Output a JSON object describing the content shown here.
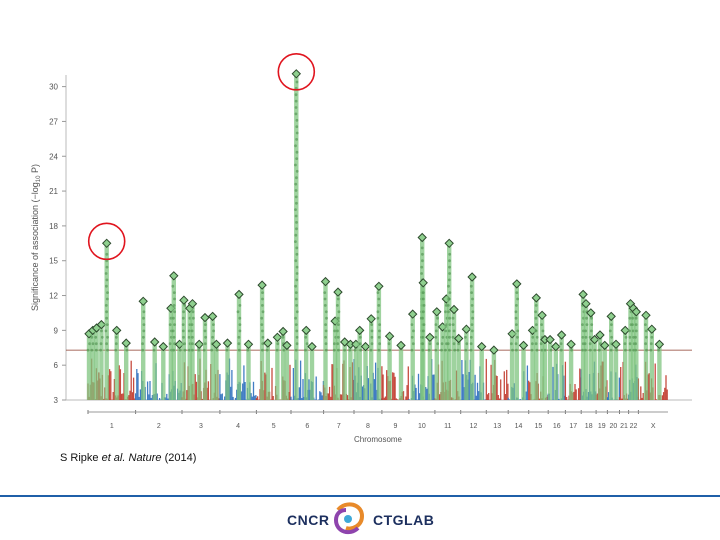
{
  "chart_data": {
    "type": "scatter",
    "title": "",
    "xlabel": "Chromosome",
    "ylabel": "Significance of association (−log10 P)",
    "ylabel_main": "Significance of association (−log",
    "ylabel_sub": "10",
    "ylabel_end": " P)",
    "ylim": [
      3,
      31
    ],
    "yticks": [
      3,
      6,
      9,
      12,
      15,
      18,
      21,
      24,
      27,
      30
    ],
    "threshold": 7.3,
    "chromosomes": [
      "1",
      "2",
      "3",
      "4",
      "5",
      "6",
      "7",
      "8",
      "9",
      "10",
      "11",
      "12",
      "13",
      "14",
      "15",
      "16",
      "17",
      "18",
      "19",
      "20",
      "21",
      "22",
      "X"
    ],
    "chrom_sizes": [
      249,
      243,
      198,
      191,
      181,
      171,
      159,
      146,
      141,
      136,
      135,
      134,
      115,
      107,
      102,
      90,
      83,
      78,
      59,
      63,
      48,
      51,
      155
    ],
    "bar_colors": [
      "#c0392b",
      "#2e6fbe"
    ],
    "hit_color": "#7fc47f",
    "loci": [
      {
        "chr": "1",
        "pos": 5,
        "p": 8.7
      },
      {
        "chr": "1",
        "pos": 25,
        "p": 9.0
      },
      {
        "chr": "1",
        "pos": 45,
        "p": 9.2
      },
      {
        "chr": "1",
        "pos": 70,
        "p": 9.5
      },
      {
        "chr": "1",
        "pos": 98,
        "p": 16.5
      },
      {
        "chr": "1",
        "pos": 150,
        "p": 9.0
      },
      {
        "chr": "1",
        "pos": 200,
        "p": 7.9
      },
      {
        "chr": "2",
        "pos": 40,
        "p": 11.5
      },
      {
        "chr": "2",
        "pos": 100,
        "p": 8.0
      },
      {
        "chr": "2",
        "pos": 145,
        "p": 7.6
      },
      {
        "chr": "2",
        "pos": 185,
        "p": 10.9
      },
      {
        "chr": "2",
        "pos": 200,
        "p": 13.7
      },
      {
        "chr": "2",
        "pos": 230,
        "p": 7.8
      },
      {
        "chr": "3",
        "pos": 10,
        "p": 11.6
      },
      {
        "chr": "3",
        "pos": 40,
        "p": 10.9
      },
      {
        "chr": "3",
        "pos": 55,
        "p": 11.3
      },
      {
        "chr": "3",
        "pos": 90,
        "p": 7.8
      },
      {
        "chr": "3",
        "pos": 120,
        "p": 10.1
      },
      {
        "chr": "3",
        "pos": 160,
        "p": 10.2
      },
      {
        "chr": "3",
        "pos": 180,
        "p": 7.8
      },
      {
        "chr": "4",
        "pos": 40,
        "p": 7.9
      },
      {
        "chr": "4",
        "pos": 100,
        "p": 12.1
      },
      {
        "chr": "4",
        "pos": 150,
        "p": 7.8
      },
      {
        "chr": "5",
        "pos": 30,
        "p": 12.9
      },
      {
        "chr": "5",
        "pos": 60,
        "p": 7.9
      },
      {
        "chr": "5",
        "pos": 110,
        "p": 8.4
      },
      {
        "chr": "5",
        "pos": 140,
        "p": 8.9
      },
      {
        "chr": "5",
        "pos": 160,
        "p": 7.7
      },
      {
        "chr": "6",
        "pos": 28,
        "p": 31.1
      },
      {
        "chr": "6",
        "pos": 80,
        "p": 9.0
      },
      {
        "chr": "6",
        "pos": 110,
        "p": 7.6
      },
      {
        "chr": "7",
        "pos": 10,
        "p": 13.2
      },
      {
        "chr": "7",
        "pos": 60,
        "p": 9.8
      },
      {
        "chr": "7",
        "pos": 75,
        "p": 12.3
      },
      {
        "chr": "7",
        "pos": 110,
        "p": 8.0
      },
      {
        "chr": "7",
        "pos": 140,
        "p": 7.8
      },
      {
        "chr": "8",
        "pos": 10,
        "p": 7.8
      },
      {
        "chr": "8",
        "pos": 30,
        "p": 9.0
      },
      {
        "chr": "8",
        "pos": 60,
        "p": 7.6
      },
      {
        "chr": "8",
        "pos": 90,
        "p": 10.0
      },
      {
        "chr": "8",
        "pos": 130,
        "p": 12.8
      },
      {
        "chr": "9",
        "pos": 40,
        "p": 8.5
      },
      {
        "chr": "9",
        "pos": 100,
        "p": 7.7
      },
      {
        "chr": "10",
        "pos": 20,
        "p": 10.4
      },
      {
        "chr": "10",
        "pos": 70,
        "p": 17.0
      },
      {
        "chr": "10",
        "pos": 75,
        "p": 13.1
      },
      {
        "chr": "10",
        "pos": 110,
        "p": 8.4
      },
      {
        "chr": "11",
        "pos": 10,
        "p": 10.6
      },
      {
        "chr": "11",
        "pos": 40,
        "p": 9.3
      },
      {
        "chr": "11",
        "pos": 60,
        "p": 11.7
      },
      {
        "chr": "11",
        "pos": 75,
        "p": 16.5
      },
      {
        "chr": "11",
        "pos": 100,
        "p": 10.8
      },
      {
        "chr": "11",
        "pos": 125,
        "p": 8.3
      },
      {
        "chr": "12",
        "pos": 30,
        "p": 9.1
      },
      {
        "chr": "12",
        "pos": 60,
        "p": 13.6
      },
      {
        "chr": "12",
        "pos": 110,
        "p": 7.6
      },
      {
        "chr": "13",
        "pos": 40,
        "p": 7.3
      },
      {
        "chr": "14",
        "pos": 20,
        "p": 8.7
      },
      {
        "chr": "14",
        "pos": 45,
        "p": 13.0
      },
      {
        "chr": "14",
        "pos": 80,
        "p": 7.7
      },
      {
        "chr": "15",
        "pos": 20,
        "p": 9.0
      },
      {
        "chr": "15",
        "pos": 40,
        "p": 11.8
      },
      {
        "chr": "15",
        "pos": 70,
        "p": 10.3
      },
      {
        "chr": "15",
        "pos": 85,
        "p": 8.2
      },
      {
        "chr": "16",
        "pos": 10,
        "p": 8.2
      },
      {
        "chr": "16",
        "pos": 40,
        "p": 7.6
      },
      {
        "chr": "16",
        "pos": 70,
        "p": 8.6
      },
      {
        "chr": "17",
        "pos": 30,
        "p": 7.8
      },
      {
        "chr": "18",
        "pos": 10,
        "p": 12.1
      },
      {
        "chr": "18",
        "pos": 25,
        "p": 11.3
      },
      {
        "chr": "18",
        "pos": 50,
        "p": 10.5
      },
      {
        "chr": "18",
        "pos": 70,
        "p": 8.2
      },
      {
        "chr": "19",
        "pos": 20,
        "p": 8.6
      },
      {
        "chr": "19",
        "pos": 45,
        "p": 7.7
      },
      {
        "chr": "20",
        "pos": 20,
        "p": 10.2
      },
      {
        "chr": "20",
        "pos": 45,
        "p": 7.8
      },
      {
        "chr": "21",
        "pos": 30,
        "p": 9.0
      },
      {
        "chr": "22",
        "pos": 10,
        "p": 11.3
      },
      {
        "chr": "22",
        "pos": 25,
        "p": 10.9
      },
      {
        "chr": "22",
        "pos": 40,
        "p": 10.6
      },
      {
        "chr": "X",
        "pos": 40,
        "p": 10.3
      },
      {
        "chr": "X",
        "pos": 70,
        "p": 9.1
      },
      {
        "chr": "X",
        "pos": 110,
        "p": 7.8
      }
    ],
    "annotations": [
      "circled top hit chr6 (MHC)",
      "circled top hit chr1"
    ]
  },
  "citation": {
    "author": "S Ripke ",
    "etal": "et al.",
    "journal": " Nature",
    "year": " (2014)"
  },
  "footer": {
    "logo_left": "CNCR",
    "logo_right": "CTGLAB"
  }
}
